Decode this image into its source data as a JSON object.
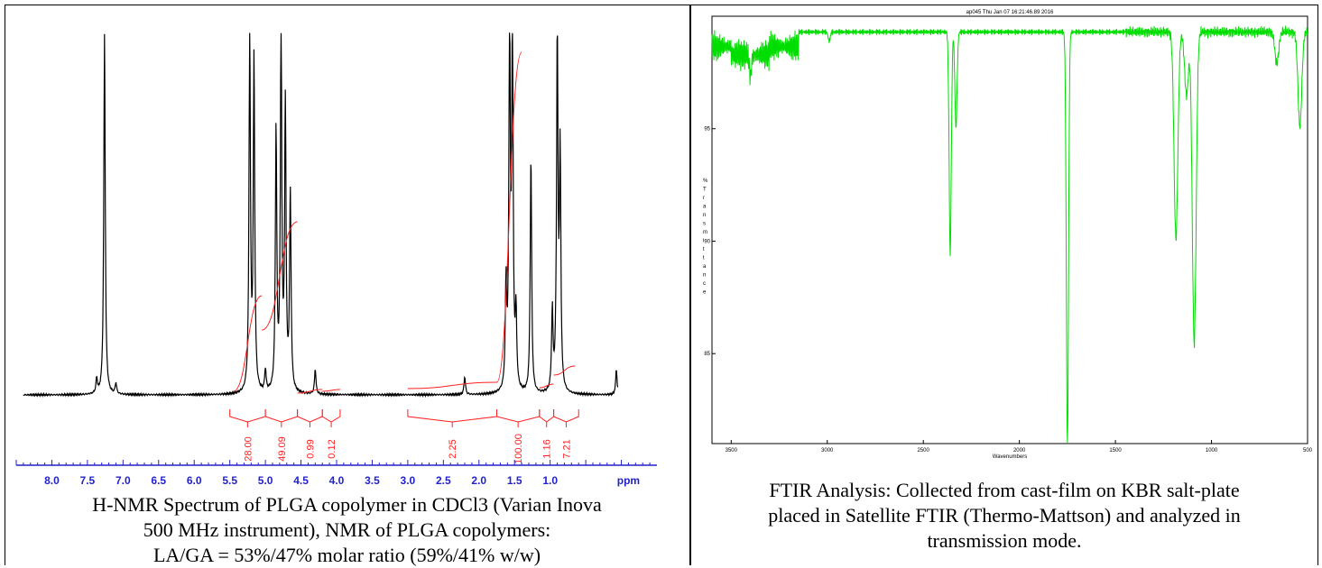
{
  "nmr": {
    "chart_data": {
      "type": "line",
      "xlabel": "ppm",
      "xlim": [
        8.5,
        -0.5
      ],
      "x_ticks": [
        "8.0",
        "7.5",
        "7.0",
        "6.5",
        "6.0",
        "5.5",
        "5.0",
        "4.5",
        "4.0",
        "3.5",
        "3.0",
        "2.5",
        "2.0",
        "1.5",
        "1.0"
      ],
      "x_unit_label": "ppm",
      "peaks": [
        {
          "ppm": 7.37,
          "height": 0.04
        },
        {
          "ppm": 7.26,
          "height": 1.0
        },
        {
          "ppm": 7.1,
          "height": 0.03
        },
        {
          "ppm": 5.22,
          "height": 1.0
        },
        {
          "ppm": 5.16,
          "height": 0.92
        },
        {
          "ppm": 5.0,
          "height": 0.06
        },
        {
          "ppm": 4.85,
          "height": 0.72
        },
        {
          "ppm": 4.78,
          "height": 1.0
        },
        {
          "ppm": 4.72,
          "height": 0.78
        },
        {
          "ppm": 4.65,
          "height": 0.55
        },
        {
          "ppm": 4.3,
          "height": 0.07
        },
        {
          "ppm": 2.2,
          "height": 0.05
        },
        {
          "ppm": 1.62,
          "height": 0.28
        },
        {
          "ppm": 1.57,
          "height": 1.0
        },
        {
          "ppm": 1.53,
          "height": 1.0
        },
        {
          "ppm": 1.48,
          "height": 0.2
        },
        {
          "ppm": 1.27,
          "height": 0.66
        },
        {
          "ppm": 0.97,
          "height": 0.22
        },
        {
          "ppm": 0.9,
          "height": 0.98
        },
        {
          "ppm": 0.86,
          "height": 0.65
        },
        {
          "ppm": 0.07,
          "height": 0.07
        }
      ],
      "integrals": [
        {
          "from": 5.5,
          "to": 5.0,
          "label": "28.00"
        },
        {
          "from": 5.0,
          "to": 4.55,
          "label": "49.09"
        },
        {
          "from": 4.55,
          "to": 4.2,
          "label": "0.99"
        },
        {
          "from": 4.2,
          "to": 3.95,
          "label": "0.12"
        },
        {
          "from": 3.0,
          "to": 1.75,
          "label": "2.25"
        },
        {
          "from": 1.75,
          "to": 1.15,
          "label": "100.00"
        },
        {
          "from": 1.15,
          "to": 0.95,
          "label": "1.16"
        },
        {
          "from": 0.95,
          "to": 0.6,
          "label": "7.21"
        }
      ]
    },
    "caption_lines": [
      "H-NMR Spectrum of PLGA copolymer in CDCl3 (Varian Inova",
      "500 MHz instrument), NMR of PLGA copolymers:",
      "LA/GA = 53%/47% molar ratio (59%/41% w/w)"
    ]
  },
  "ftir": {
    "chart_data": {
      "type": "line",
      "title": "ap045   Thu Jan 07 16:21:46.89 2016",
      "xlabel": "Wavenumbers",
      "ylabel": "% Transmittance",
      "xlim": [
        3600,
        500
      ],
      "ylim": [
        81,
        100
      ],
      "x_ticks": [
        "3500",
        "3000",
        "2500",
        "2000",
        "1500",
        "1000",
        "500"
      ],
      "y_ticks": [
        "95",
        "90",
        "85"
      ],
      "baseline": 99.3,
      "bands": [
        {
          "wavenumber": 3400,
          "transmittance": 98.3
        },
        {
          "wavenumber": 2990,
          "transmittance": 98.9
        },
        {
          "wavenumber": 2360,
          "transmittance": 89.4
        },
        {
          "wavenumber": 2330,
          "transmittance": 95.0
        },
        {
          "wavenumber": 1750,
          "transmittance": 81.0
        },
        {
          "wavenumber": 1185,
          "transmittance": 90.1
        },
        {
          "wavenumber": 1130,
          "transmittance": 96.5
        },
        {
          "wavenumber": 1090,
          "transmittance": 85.4
        },
        {
          "wavenumber": 660,
          "transmittance": 97.9
        },
        {
          "wavenumber": 540,
          "transmittance": 95.1
        }
      ],
      "line_color": "#00dd00"
    },
    "caption_lines": [
      "FTIR Analysis: Collected from cast-film on KBR salt-plate",
      "placed in Satellite FTIR (Thermo-Mattson) and analyzed in",
      "transmission mode."
    ]
  }
}
